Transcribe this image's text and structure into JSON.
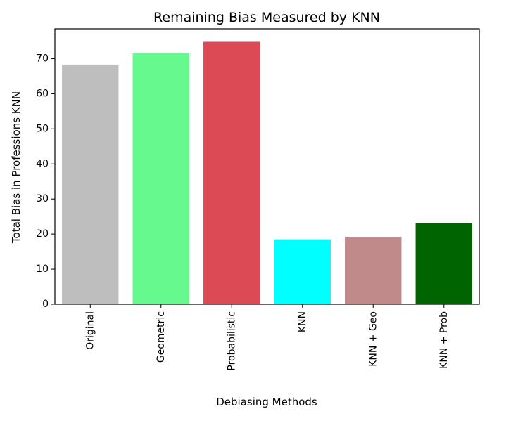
{
  "chart_data": {
    "type": "bar",
    "title": "Remaining Bias Measured by KNN",
    "xlabel": "Debiasing Methods",
    "ylabel": "Total Bias in Professions KNN",
    "categories": [
      "Original",
      "Geometric",
      "Probabilistic",
      "KNN",
      "KNN + Geo",
      "KNN + Prob"
    ],
    "values": [
      68.3,
      71.5,
      74.8,
      18.5,
      19.2,
      23.2
    ],
    "colors": [
      "#bebebe",
      "#66f98d",
      "#dc4b55",
      "#00ffff",
      "#c08a8a",
      "#006400"
    ],
    "ylim": [
      0,
      78.5
    ],
    "yticks": [
      0,
      10,
      20,
      30,
      40,
      50,
      60,
      70
    ],
    "grid": false,
    "legend": "none"
  }
}
